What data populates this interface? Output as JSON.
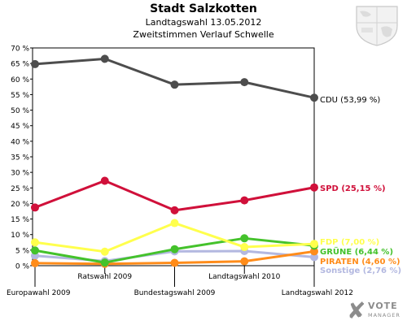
{
  "header": {
    "title": "Stadt Salzkotten",
    "subtitle": "Landtagswahl 13.05.2012",
    "subtitle2": "Zweitstimmen Verlauf Schwelle"
  },
  "logo": {
    "mark": "✘",
    "line1": "VOTE",
    "line2": "MANAGER"
  },
  "crest_icon": "coat-of-arms-icon",
  "chart_data": {
    "type": "line",
    "title": "Stadt Salzkotten",
    "subtitle": "Landtagswahl 13.05.2012 · Zweitstimmen Verlauf Schwelle",
    "categories": [
      "Europawahl 2009",
      "Ratswahl 2009",
      "Bundestagswahl 2009",
      "Landtagswahl 2010",
      "Landtagswahl 2012"
    ],
    "ylim": [
      0,
      70
    ],
    "yticks": [
      0,
      5,
      10,
      15,
      20,
      25,
      30,
      35,
      40,
      45,
      50,
      55,
      60,
      65,
      70
    ],
    "ytick_labels": [
      "0 %",
      "5 %",
      "10 %",
      "15 %",
      "20 %",
      "25 %",
      "30 %",
      "35 %",
      "40 %",
      "45 %",
      "50 %",
      "55 %",
      "60 %",
      "65 %",
      "70 %"
    ],
    "grid": false,
    "series": [
      {
        "name": "CDU",
        "label": "CDU (53,99 %)",
        "color": "#4d4d4d",
        "values": [
          64.8,
          66.5,
          58.2,
          59.0,
          54.0
        ]
      },
      {
        "name": "SPD",
        "label": "SPD (25,15 %)",
        "color": "#d0103a",
        "values": [
          18.7,
          27.3,
          17.8,
          21.0,
          25.15
        ]
      },
      {
        "name": "FDP",
        "label": "FDP (7,00 %)",
        "color": "#ffff4d",
        "values": [
          7.5,
          4.5,
          13.7,
          6.0,
          7.0
        ]
      },
      {
        "name": "GRÜNE",
        "label": "GRÜNE (6,44 %)",
        "color": "#44c22b",
        "values": [
          4.9,
          1.0,
          5.3,
          8.8,
          6.44
        ]
      },
      {
        "name": "PIRATEN",
        "label": "PIRATEN (4,60 %)",
        "color": "#ff8c1a",
        "values": [
          0.8,
          0.6,
          0.9,
          1.4,
          4.6
        ]
      },
      {
        "name": "Sonstige",
        "label": "Sonstige (2,76 %)",
        "color": "#b3b8e0",
        "values": [
          3.2,
          1.5,
          4.6,
          4.7,
          2.76
        ]
      }
    ]
  }
}
